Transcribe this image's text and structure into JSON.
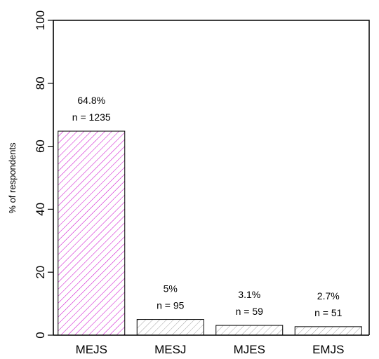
{
  "chart_data": {
    "type": "bar",
    "title": "",
    "xlabel": "",
    "ylabel": "% of respondents",
    "ylim": [
      0,
      100
    ],
    "yticks": [
      "0",
      "20",
      "40",
      "60",
      "80",
      "100"
    ],
    "ytick_values": [
      0,
      20,
      40,
      60,
      80,
      100
    ],
    "categories": [
      "MEJS",
      "MESJ",
      "MJES",
      "EMJS"
    ],
    "values": [
      64.8,
      5,
      3.1,
      2.7
    ],
    "pct_labels": [
      "64.8%",
      "5%",
      "3.1%",
      "2.7%"
    ],
    "n_labels": [
      "n = 1235",
      "n = 95",
      "n = 59",
      "n = 51"
    ],
    "bar_colors": [
      "#cc00cc",
      "#a6a6a6",
      "#a6a6a6",
      "#a6a6a6"
    ],
    "fill_pattern": "diagonal-hatch",
    "grid": false,
    "legend": "none"
  }
}
